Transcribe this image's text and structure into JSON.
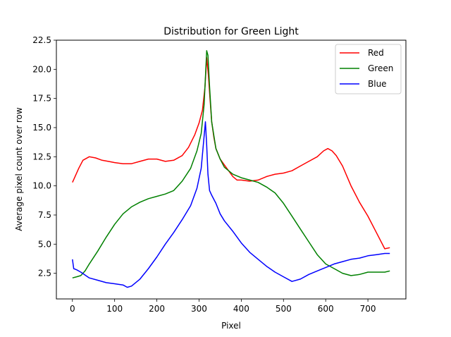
{
  "chart_data": {
    "type": "line",
    "title": "Distribution for Green Light",
    "xlabel": "Pixel",
    "ylabel": "Average pixel count over row",
    "xlim": [
      -38,
      790
    ],
    "ylim": [
      0.3,
      22.5
    ],
    "xticks": [
      0,
      100,
      200,
      300,
      400,
      500,
      600,
      700
    ],
    "yticks": [
      2.5,
      5.0,
      7.5,
      10.0,
      12.5,
      15.0,
      17.5,
      20.0,
      22.5
    ],
    "ytick_labels": [
      "2.5",
      "5.0",
      "7.5",
      "10.0",
      "12.5",
      "15.0",
      "17.5",
      "20.0",
      "22.5"
    ],
    "grid": false,
    "legend_position": "top-right",
    "series": [
      {
        "name": "Red",
        "color": "#ff0000",
        "x": [
          0,
          5,
          15,
          25,
          40,
          55,
          70,
          85,
          100,
          120,
          140,
          160,
          180,
          200,
          220,
          240,
          260,
          275,
          290,
          300,
          308,
          314,
          318,
          322,
          326,
          330,
          335,
          340,
          350,
          360,
          370,
          380,
          390,
          400,
          420,
          440,
          460,
          480,
          500,
          520,
          540,
          560,
          580,
          595,
          605,
          615,
          625,
          640,
          660,
          680,
          700,
          720,
          740,
          752
        ],
        "y": [
          10.3,
          10.7,
          11.5,
          12.2,
          12.5,
          12.4,
          12.2,
          12.1,
          12.0,
          11.9,
          11.9,
          12.1,
          12.3,
          12.3,
          12.1,
          12.2,
          12.6,
          13.3,
          14.4,
          15.4,
          16.5,
          18.5,
          21.0,
          19.5,
          17.5,
          15.5,
          14.2,
          13.2,
          12.3,
          11.8,
          11.3,
          10.8,
          10.5,
          10.5,
          10.4,
          10.5,
          10.8,
          11.0,
          11.1,
          11.3,
          11.7,
          12.1,
          12.5,
          13.0,
          13.2,
          13.0,
          12.6,
          11.7,
          10.0,
          8.6,
          7.4,
          6.0,
          4.6,
          4.7
        ]
      },
      {
        "name": "Green",
        "color": "#008000",
        "x": [
          0,
          10,
          20,
          30,
          40,
          60,
          80,
          100,
          120,
          140,
          160,
          180,
          200,
          220,
          240,
          260,
          280,
          295,
          305,
          312,
          318,
          321,
          325,
          330,
          340,
          350,
          360,
          380,
          400,
          420,
          440,
          460,
          480,
          500,
          520,
          540,
          560,
          580,
          600,
          620,
          640,
          660,
          680,
          700,
          720,
          740,
          752
        ],
        "y": [
          2.1,
          2.2,
          2.3,
          2.7,
          3.3,
          4.4,
          5.6,
          6.7,
          7.6,
          8.2,
          8.6,
          8.9,
          9.1,
          9.3,
          9.6,
          10.4,
          11.5,
          13.0,
          14.5,
          17.0,
          21.6,
          21.2,
          18.5,
          15.5,
          13.2,
          12.3,
          11.6,
          11.0,
          10.7,
          10.5,
          10.3,
          9.9,
          9.4,
          8.5,
          7.4,
          6.3,
          5.2,
          4.1,
          3.3,
          2.9,
          2.5,
          2.3,
          2.4,
          2.6,
          2.6,
          2.6,
          2.7
        ]
      },
      {
        "name": "Blue",
        "color": "#0000ff",
        "x": [
          0,
          3,
          10,
          20,
          40,
          60,
          80,
          100,
          120,
          130,
          140,
          160,
          180,
          200,
          220,
          240,
          260,
          280,
          295,
          305,
          310,
          315,
          318,
          321,
          325,
          330,
          340,
          350,
          360,
          380,
          400,
          420,
          440,
          460,
          480,
          500,
          520,
          540,
          560,
          580,
          600,
          620,
          640,
          660,
          680,
          700,
          720,
          740,
          752
        ],
        "y": [
          3.7,
          2.9,
          2.8,
          2.6,
          2.1,
          1.9,
          1.7,
          1.6,
          1.5,
          1.3,
          1.4,
          2.0,
          2.9,
          3.9,
          5.0,
          6.0,
          7.1,
          8.3,
          9.8,
          11.5,
          13.5,
          15.5,
          13.5,
          11.0,
          9.6,
          9.2,
          8.5,
          7.6,
          7.0,
          6.1,
          5.1,
          4.3,
          3.7,
          3.1,
          2.6,
          2.2,
          1.8,
          2.0,
          2.4,
          2.7,
          3.0,
          3.3,
          3.5,
          3.7,
          3.8,
          4.0,
          4.1,
          4.2,
          4.2
        ]
      }
    ]
  }
}
